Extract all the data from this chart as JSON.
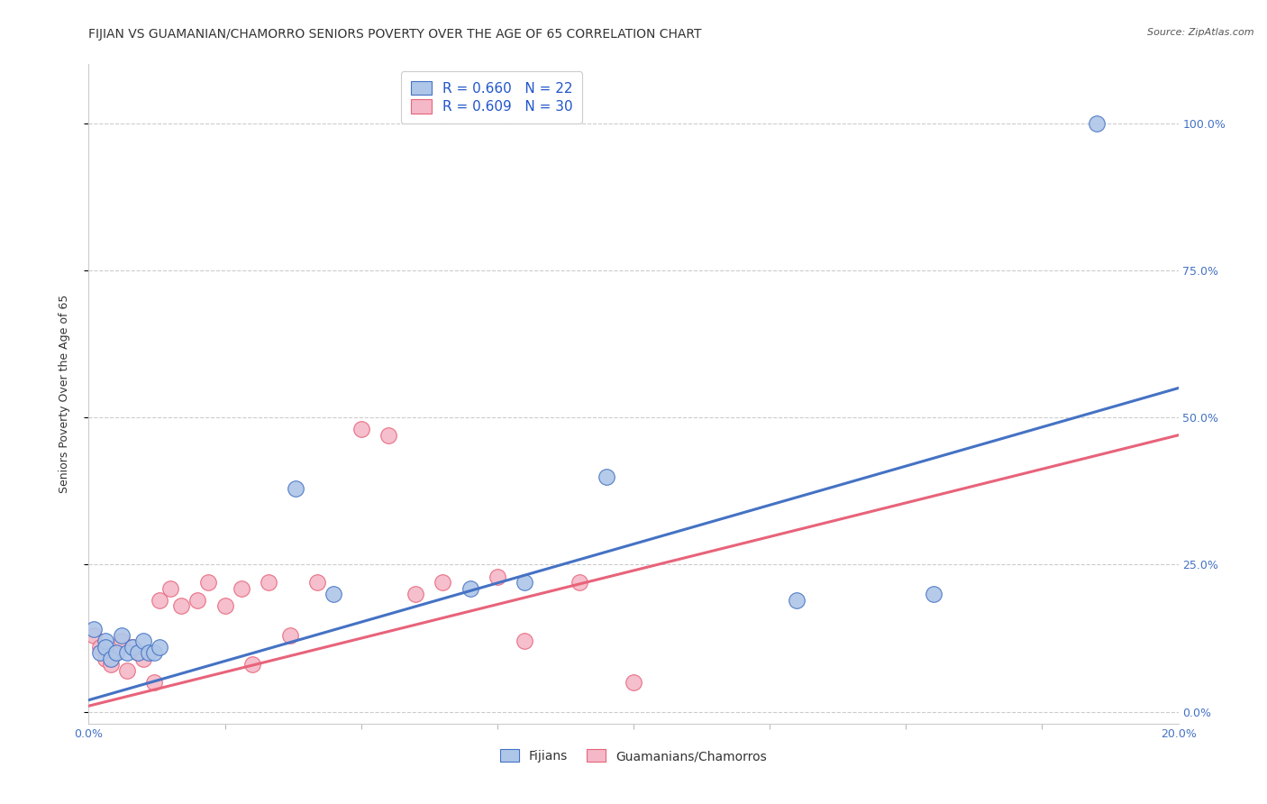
{
  "title": "FIJIAN VS GUAMANIAN/CHAMORRO SENIORS POVERTY OVER THE AGE OF 65 CORRELATION CHART",
  "source": "Source: ZipAtlas.com",
  "ylabel": "Seniors Poverty Over the Age of 65",
  "xlim": [
    0.0,
    0.2
  ],
  "ylim": [
    -0.02,
    1.1
  ],
  "fijian_R": 0.66,
  "fijian_N": 22,
  "guamanian_R": 0.609,
  "guamanian_N": 30,
  "fijian_color": "#aec6e8",
  "fijian_line_color": "#4472c4",
  "guamanian_color": "#f4b8c8",
  "guamanian_line_color": "#e8637a",
  "legend_color": "#2255cc",
  "background_color": "#ffffff",
  "grid_color": "#cccccc",
  "fijian_x": [
    0.001,
    0.002,
    0.003,
    0.003,
    0.004,
    0.005,
    0.006,
    0.007,
    0.008,
    0.009,
    0.01,
    0.011,
    0.012,
    0.013,
    0.038,
    0.045,
    0.07,
    0.08,
    0.095,
    0.13,
    0.155,
    0.185
  ],
  "fijian_y": [
    0.14,
    0.1,
    0.12,
    0.11,
    0.09,
    0.1,
    0.13,
    0.1,
    0.11,
    0.1,
    0.12,
    0.1,
    0.1,
    0.11,
    0.38,
    0.2,
    0.21,
    0.22,
    0.4,
    0.19,
    0.2,
    1.0
  ],
  "guamanian_x": [
    0.001,
    0.002,
    0.003,
    0.004,
    0.005,
    0.006,
    0.007,
    0.008,
    0.009,
    0.01,
    0.012,
    0.013,
    0.015,
    0.017,
    0.02,
    0.022,
    0.025,
    0.028,
    0.03,
    0.033,
    0.037,
    0.042,
    0.05,
    0.055,
    0.06,
    0.065,
    0.075,
    0.08,
    0.09,
    0.1
  ],
  "guamanian_y": [
    0.13,
    0.11,
    0.09,
    0.08,
    0.1,
    0.12,
    0.07,
    0.11,
    0.1,
    0.09,
    0.05,
    0.19,
    0.21,
    0.18,
    0.19,
    0.22,
    0.18,
    0.21,
    0.08,
    0.22,
    0.13,
    0.22,
    0.48,
    0.47,
    0.2,
    0.22,
    0.23,
    0.12,
    0.22,
    0.05
  ],
  "fijian_trend_x0": 0.0,
  "fijian_trend_y0": 0.02,
  "fijian_trend_x1": 0.2,
  "fijian_trend_y1": 0.55,
  "guamanian_trend_x0": 0.0,
  "guamanian_trend_y0": 0.01,
  "guamanian_trend_x1": 0.2,
  "guamanian_trend_y1": 0.47,
  "title_fontsize": 10,
  "axis_label_fontsize": 9,
  "tick_fontsize": 9,
  "legend_fontsize": 11
}
